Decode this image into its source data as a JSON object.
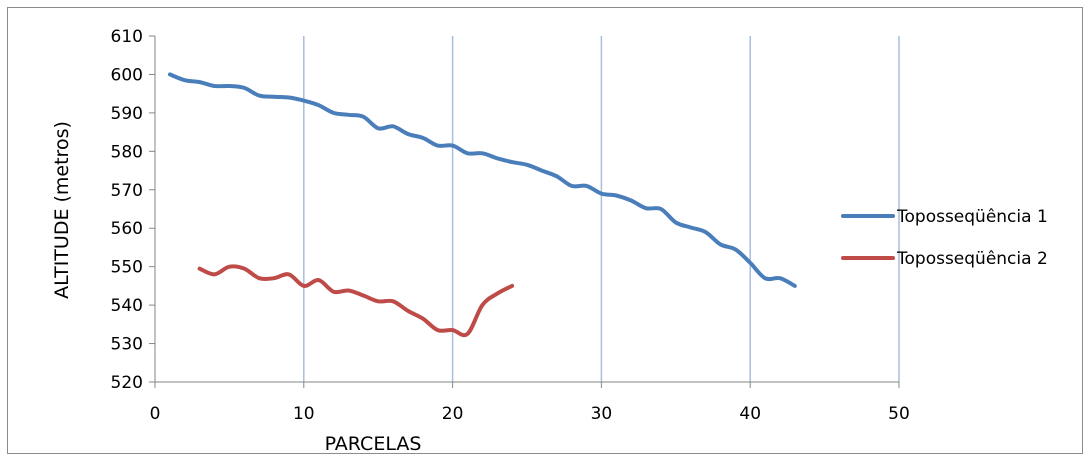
{
  "chart_data": {
    "type": "line",
    "title": "",
    "xlabel": "PARCELAS",
    "ylabel": "ALTITUDE (metros)",
    "xlim": [
      0,
      50
    ],
    "ylim": [
      520,
      610
    ],
    "x_ticks": [
      "0",
      "10",
      "20",
      "30",
      "40",
      "50"
    ],
    "y_ticks": [
      "520",
      "530",
      "540",
      "550",
      "560",
      "570",
      "580",
      "590",
      "600",
      "610"
    ],
    "x_tick_values": [
      0,
      10,
      20,
      30,
      40,
      50
    ],
    "y_tick_values": [
      520,
      530,
      540,
      550,
      560,
      570,
      580,
      590,
      600,
      610
    ],
    "grid": "vertical",
    "legend_position": "right",
    "series": [
      {
        "name": "Toposseqüência 1",
        "color": "#4a7ebb",
        "x": [
          1,
          2,
          3,
          4,
          5,
          6,
          7,
          8,
          9,
          10,
          11,
          12,
          13,
          14,
          15,
          16,
          17,
          18,
          19,
          20,
          21,
          22,
          23,
          24,
          25,
          26,
          27,
          28,
          29,
          30,
          31,
          32,
          33,
          34,
          35,
          36,
          37,
          38,
          39,
          40,
          41,
          42,
          43
        ],
        "y": [
          600,
          598.5,
          598,
          597,
          597,
          596.5,
          594.5,
          594.2,
          594,
          593.2,
          592,
          590,
          589.5,
          589,
          586,
          586.5,
          584.5,
          583.5,
          581.5,
          581.5,
          579.5,
          579.5,
          578.2,
          577.2,
          576.5,
          575,
          573.5,
          571,
          571,
          569,
          568.5,
          567.2,
          565.2,
          565,
          561.5,
          560.2,
          559,
          555.8,
          554.5,
          551,
          547,
          547,
          545
        ]
      },
      {
        "name": "Toposseqüência 2",
        "color": "#be4b48",
        "x": [
          3,
          4,
          5,
          6,
          7,
          8,
          9,
          10,
          11,
          12,
          13,
          14,
          15,
          16,
          17,
          18,
          19,
          20,
          21,
          22,
          23,
          24
        ],
        "y": [
          549.5,
          548,
          550,
          549.5,
          547,
          547,
          548,
          545,
          546.5,
          543.5,
          543.8,
          542.5,
          541,
          541,
          538.5,
          536.5,
          533.5,
          533.5,
          532.5,
          540,
          543,
          545
        ]
      }
    ]
  }
}
